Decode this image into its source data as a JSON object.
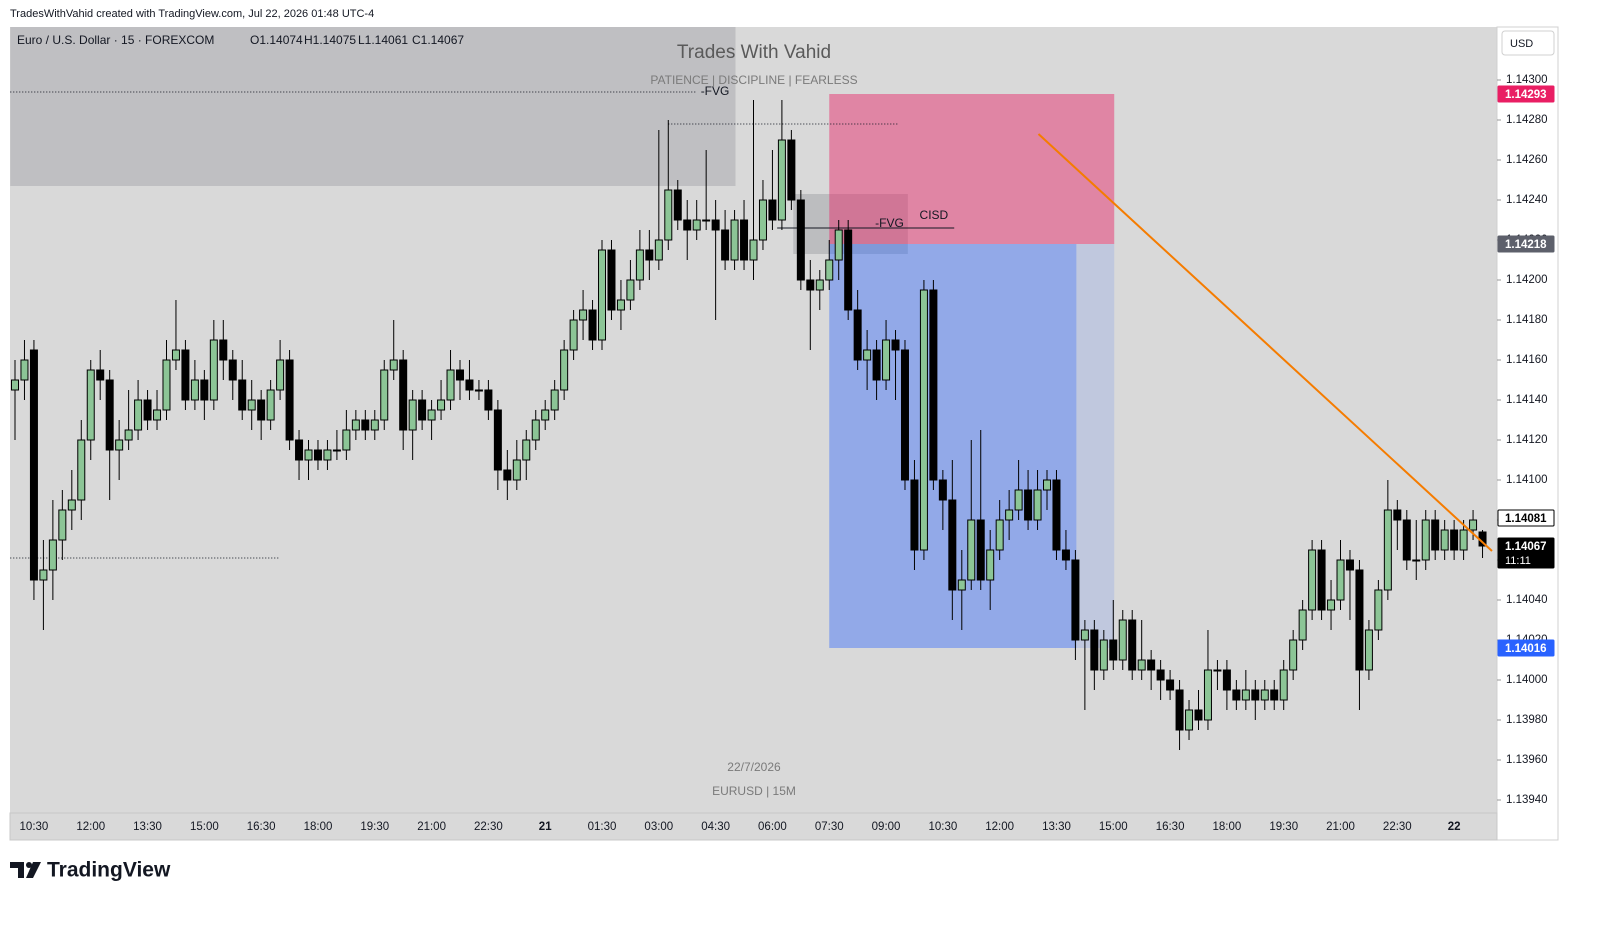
{
  "chart_data": {
    "type": "candlestick",
    "credit": "TradesWithVahid created with TradingView.com, Jul 22, 2026 01:48 UTC-4",
    "symbol": "Euro / U.S. Dollar · 15 · FOREXCOM",
    "ohlc_text": [
      "O1.14074",
      "H1.14075",
      "L1.14061",
      "C1.14067"
    ],
    "title": "Trades With Vahid",
    "subtitle": "PATIENCE  |  DISCIPLINE  |  FEARLESS",
    "date_note": "22/7/2026",
    "symbol_note": "EURUSD  |  15M",
    "currency": "USD",
    "brand": "TradingView",
    "up_color": "#8cc596",
    "down_color": "#000000",
    "ylim": [
      1.139335,
      1.143265
    ],
    "yticks": [
      {
        "value": 1.143,
        "label": "1.14300"
      },
      {
        "value": 1.1428,
        "label": "1.14280"
      },
      {
        "value": 1.1426,
        "label": "1.14260"
      },
      {
        "value": 1.1424,
        "label": "1.14240"
      },
      {
        "value": 1.1422,
        "label": "1.14220"
      },
      {
        "value": 1.142,
        "label": "1.14200"
      },
      {
        "value": 1.1418,
        "label": "1.14180"
      },
      {
        "value": 1.1416,
        "label": "1.14160"
      },
      {
        "value": 1.1414,
        "label": "1.14140"
      },
      {
        "value": 1.1412,
        "label": "1.14120"
      },
      {
        "value": 1.141,
        "label": "1.14100"
      },
      {
        "value": 1.1408,
        "label": "1.14080"
      },
      {
        "value": 1.1406,
        "label": "1.14060"
      },
      {
        "value": 1.1404,
        "label": "1.14040"
      },
      {
        "value": 1.1402,
        "label": "1.14020"
      },
      {
        "value": 1.14,
        "label": "1.14000"
      },
      {
        "value": 1.1398,
        "label": "1.13980"
      },
      {
        "value": 1.1396,
        "label": "1.13960"
      },
      {
        "value": 1.1394,
        "label": "1.13940"
      }
    ],
    "categories": [
      null,
      null,
      "10:30",
      null,
      null,
      null,
      null,
      null,
      "12:00",
      null,
      null,
      null,
      null,
      null,
      "13:30",
      null,
      null,
      null,
      null,
      null,
      "15:00",
      null,
      null,
      null,
      null,
      null,
      "16:30",
      null,
      null,
      null,
      null,
      null,
      "18:00",
      null,
      null,
      null,
      null,
      null,
      "19:30",
      null,
      null,
      null,
      null,
      null,
      "21:00",
      null,
      null,
      null,
      null,
      null,
      "22:30",
      null,
      null,
      null,
      null,
      null,
      "21",
      null,
      null,
      null,
      null,
      null,
      "01:30",
      null,
      null,
      null,
      null,
      null,
      "03:00",
      null,
      null,
      null,
      null,
      null,
      "04:30",
      null,
      null,
      null,
      null,
      null,
      "06:00",
      null,
      null,
      null,
      null,
      null,
      "07:30",
      null,
      null,
      null,
      null,
      null,
      "09:00",
      null,
      null,
      null,
      null,
      null,
      "10:30",
      null,
      null,
      null,
      null,
      null,
      "12:00",
      null,
      null,
      null,
      null,
      null,
      "13:30",
      null,
      null,
      null,
      null,
      null,
      "15:00",
      null,
      null,
      null,
      null,
      null,
      "16:30",
      null,
      null,
      null,
      null,
      null,
      "18:00",
      null,
      null,
      null,
      null,
      null,
      "19:30",
      null,
      null,
      null,
      null,
      null,
      "21:00",
      null,
      null,
      null,
      null,
      null,
      "22:30",
      null,
      null,
      null,
      null,
      null,
      "22",
      null,
      null,
      null
    ],
    "ohlc": [
      [
        1.14145,
        1.1416,
        1.1412,
        1.1415
      ],
      [
        1.1415,
        1.1417,
        1.1414,
        1.1416
      ],
      [
        1.14165,
        1.1417,
        1.1404,
        1.1405
      ],
      [
        1.1405,
        1.1407,
        1.14025,
        1.14055
      ],
      [
        1.14055,
        1.1409,
        1.1404,
        1.1407
      ],
      [
        1.1407,
        1.14095,
        1.1406,
        1.14085
      ],
      [
        1.14085,
        1.14105,
        1.14075,
        1.1409
      ],
      [
        1.1409,
        1.1413,
        1.1408,
        1.1412
      ],
      [
        1.1412,
        1.1416,
        1.1411,
        1.14155
      ],
      [
        1.14155,
        1.14165,
        1.1414,
        1.1415
      ],
      [
        1.1415,
        1.14155,
        1.1409,
        1.14115
      ],
      [
        1.14115,
        1.1413,
        1.141,
        1.1412
      ],
      [
        1.1412,
        1.14145,
        1.14115,
        1.14125
      ],
      [
        1.14125,
        1.1415,
        1.1412,
        1.1414
      ],
      [
        1.1414,
        1.14145,
        1.14125,
        1.1413
      ],
      [
        1.1413,
        1.14145,
        1.14125,
        1.14135
      ],
      [
        1.14135,
        1.1417,
        1.1413,
        1.1416
      ],
      [
        1.1416,
        1.1419,
        1.14155,
        1.14165
      ],
      [
        1.14165,
        1.1417,
        1.14135,
        1.1414
      ],
      [
        1.1414,
        1.1416,
        1.14135,
        1.1415
      ],
      [
        1.1415,
        1.14155,
        1.1413,
        1.1414
      ],
      [
        1.1414,
        1.1418,
        1.14135,
        1.1417
      ],
      [
        1.1417,
        1.1418,
        1.1415,
        1.1416
      ],
      [
        1.1416,
        1.14165,
        1.1414,
        1.1415
      ],
      [
        1.1415,
        1.1416,
        1.1413,
        1.14135
      ],
      [
        1.14135,
        1.1415,
        1.14125,
        1.1414
      ],
      [
        1.1414,
        1.14145,
        1.1412,
        1.1413
      ],
      [
        1.1413,
        1.1415,
        1.14125,
        1.14145
      ],
      [
        1.14145,
        1.1417,
        1.1414,
        1.1416
      ],
      [
        1.1416,
        1.14165,
        1.14115,
        1.1412
      ],
      [
        1.1412,
        1.14125,
        1.141,
        1.1411
      ],
      [
        1.1411,
        1.1412,
        1.141,
        1.14115
      ],
      [
        1.14115,
        1.1412,
        1.14105,
        1.1411
      ],
      [
        1.1411,
        1.1412,
        1.14105,
        1.14115
      ],
      [
        1.14115,
        1.14125,
        1.1411,
        1.14115
      ],
      [
        1.14115,
        1.14135,
        1.1411,
        1.14125
      ],
      [
        1.14125,
        1.14135,
        1.1412,
        1.1413
      ],
      [
        1.1413,
        1.14135,
        1.1412,
        1.14125
      ],
      [
        1.14125,
        1.14135,
        1.1412,
        1.1413
      ],
      [
        1.1413,
        1.1416,
        1.14125,
        1.14155
      ],
      [
        1.14155,
        1.1418,
        1.1415,
        1.1416
      ],
      [
        1.1416,
        1.14165,
        1.14115,
        1.14125
      ],
      [
        1.14125,
        1.14145,
        1.1411,
        1.1414
      ],
      [
        1.1414,
        1.14145,
        1.14125,
        1.1413
      ],
      [
        1.1413,
        1.1414,
        1.1412,
        1.14135
      ],
      [
        1.14135,
        1.1415,
        1.1413,
        1.1414
      ],
      [
        1.1414,
        1.14165,
        1.14135,
        1.14155
      ],
      [
        1.14155,
        1.1416,
        1.1414,
        1.1415
      ],
      [
        1.1415,
        1.1416,
        1.1414,
        1.14145
      ],
      [
        1.14145,
        1.1415,
        1.1414,
        1.14145
      ],
      [
        1.14145,
        1.1415,
        1.1413,
        1.14135
      ],
      [
        1.14135,
        1.1414,
        1.14095,
        1.14105
      ],
      [
        1.14105,
        1.14115,
        1.1409,
        1.141
      ],
      [
        1.141,
        1.1412,
        1.14095,
        1.1411
      ],
      [
        1.1411,
        1.14125,
        1.141,
        1.1412
      ],
      [
        1.1412,
        1.14135,
        1.14115,
        1.1413
      ],
      [
        1.1413,
        1.1414,
        1.14125,
        1.14135
      ],
      [
        1.14135,
        1.1415,
        1.1413,
        1.14145
      ],
      [
        1.14145,
        1.1417,
        1.1414,
        1.14165
      ],
      [
        1.14165,
        1.14185,
        1.1416,
        1.1418
      ],
      [
        1.1418,
        1.14195,
        1.1417,
        1.14185
      ],
      [
        1.14185,
        1.1419,
        1.14165,
        1.1417
      ],
      [
        1.1417,
        1.1422,
        1.14165,
        1.14215
      ],
      [
        1.14215,
        1.1422,
        1.1418,
        1.14185
      ],
      [
        1.14185,
        1.142,
        1.14175,
        1.1419
      ],
      [
        1.1419,
        1.1421,
        1.14185,
        1.142
      ],
      [
        1.142,
        1.14225,
        1.14195,
        1.14215
      ],
      [
        1.14215,
        1.14225,
        1.142,
        1.1421
      ],
      [
        1.1421,
        1.14275,
        1.14205,
        1.1422
      ],
      [
        1.1422,
        1.1428,
        1.14215,
        1.14245
      ],
      [
        1.14245,
        1.1425,
        1.14225,
        1.1423
      ],
      [
        1.1423,
        1.1424,
        1.1421,
        1.14225
      ],
      [
        1.14225,
        1.1424,
        1.1422,
        1.1423
      ],
      [
        1.1423,
        1.14265,
        1.14225,
        1.1423
      ],
      [
        1.1423,
        1.1424,
        1.1418,
        1.14225
      ],
      [
        1.14225,
        1.14235,
        1.14205,
        1.1421
      ],
      [
        1.1421,
        1.14235,
        1.14205,
        1.1423
      ],
      [
        1.1423,
        1.1424,
        1.14205,
        1.1421
      ],
      [
        1.1421,
        1.1429,
        1.142,
        1.1422
      ],
      [
        1.1422,
        1.1425,
        1.14215,
        1.1424
      ],
      [
        1.1424,
        1.14265,
        1.14225,
        1.1423
      ],
      [
        1.1423,
        1.1429,
        1.14225,
        1.1427
      ],
      [
        1.1427,
        1.14275,
        1.14235,
        1.1424
      ],
      [
        1.1424,
        1.14245,
        1.14195,
        1.142
      ],
      [
        1.142,
        1.1421,
        1.14165,
        1.14195
      ],
      [
        1.14195,
        1.14205,
        1.14185,
        1.142
      ],
      [
        1.142,
        1.1422,
        1.14195,
        1.1421
      ],
      [
        1.1421,
        1.1423,
        1.142,
        1.14225
      ],
      [
        1.14225,
        1.1423,
        1.1418,
        1.14185
      ],
      [
        1.14185,
        1.14195,
        1.14155,
        1.1416
      ],
      [
        1.1416,
        1.14175,
        1.14145,
        1.14165
      ],
      [
        1.14165,
        1.1417,
        1.1414,
        1.1415
      ],
      [
        1.1415,
        1.1418,
        1.14145,
        1.1417
      ],
      [
        1.1417,
        1.14175,
        1.1414,
        1.14165
      ],
      [
        1.14165,
        1.1417,
        1.14095,
        1.141
      ],
      [
        1.141,
        1.1411,
        1.14055,
        1.14065
      ],
      [
        1.14065,
        1.142,
        1.1406,
        1.14195
      ],
      [
        1.14195,
        1.142,
        1.14095,
        1.141
      ],
      [
        1.141,
        1.14105,
        1.14075,
        1.1409
      ],
      [
        1.1409,
        1.1411,
        1.1403,
        1.14045
      ],
      [
        1.14045,
        1.14065,
        1.14025,
        1.1405
      ],
      [
        1.1405,
        1.1412,
        1.14045,
        1.1408
      ],
      [
        1.1408,
        1.14125,
        1.14045,
        1.1405
      ],
      [
        1.1405,
        1.14075,
        1.14035,
        1.14065
      ],
      [
        1.14065,
        1.1409,
        1.1406,
        1.1408
      ],
      [
        1.1408,
        1.14095,
        1.1407,
        1.14085
      ],
      [
        1.14085,
        1.1411,
        1.1408,
        1.14095
      ],
      [
        1.14095,
        1.14105,
        1.14075,
        1.1408
      ],
      [
        1.1408,
        1.14105,
        1.14075,
        1.14095
      ],
      [
        1.14095,
        1.14105,
        1.14085,
        1.141
      ],
      [
        1.141,
        1.14105,
        1.1406,
        1.14065
      ],
      [
        1.14065,
        1.14075,
        1.14055,
        1.1406
      ],
      [
        1.1406,
        1.14065,
        1.1401,
        1.1402
      ],
      [
        1.1402,
        1.1403,
        1.13985,
        1.14025
      ],
      [
        1.14025,
        1.1403,
        1.13995,
        1.14005
      ],
      [
        1.14005,
        1.14025,
        1.14,
        1.1402
      ],
      [
        1.1402,
        1.1404,
        1.14005,
        1.1401
      ],
      [
        1.1401,
        1.14035,
        1.14005,
        1.1403
      ],
      [
        1.1403,
        1.14035,
        1.14,
        1.14005
      ],
      [
        1.14005,
        1.1403,
        1.14,
        1.1401
      ],
      [
        1.1401,
        1.14015,
        1.13995,
        1.14005
      ],
      [
        1.14005,
        1.1401,
        1.1399,
        1.14
      ],
      [
        1.14,
        1.14005,
        1.1399,
        1.13995
      ],
      [
        1.13995,
        1.14,
        1.13965,
        1.13975
      ],
      [
        1.13975,
        1.1399,
        1.1397,
        1.13985
      ],
      [
        1.13985,
        1.13995,
        1.13975,
        1.1398
      ],
      [
        1.1398,
        1.14025,
        1.13975,
        1.14005
      ],
      [
        1.14005,
        1.1401,
        1.13995,
        1.14005
      ],
      [
        1.14005,
        1.1401,
        1.13985,
        1.13995
      ],
      [
        1.13995,
        1.14,
        1.13985,
        1.1399
      ],
      [
        1.1399,
        1.14005,
        1.13985,
        1.13995
      ],
      [
        1.13995,
        1.14,
        1.1398,
        1.1399
      ],
      [
        1.1399,
        1.14,
        1.13985,
        1.13995
      ],
      [
        1.13995,
        1.14,
        1.13985,
        1.1399
      ],
      [
        1.1399,
        1.1401,
        1.13985,
        1.14005
      ],
      [
        1.14005,
        1.14025,
        1.14,
        1.1402
      ],
      [
        1.1402,
        1.1404,
        1.14015,
        1.14035
      ],
      [
        1.14035,
        1.1407,
        1.1403,
        1.14065
      ],
      [
        1.14065,
        1.1407,
        1.1403,
        1.14035
      ],
      [
        1.14035,
        1.1405,
        1.14025,
        1.1404
      ],
      [
        1.1404,
        1.1407,
        1.14035,
        1.1406
      ],
      [
        1.1406,
        1.14065,
        1.1403,
        1.14055
      ],
      [
        1.14055,
        1.1406,
        1.13985,
        1.14005
      ],
      [
        1.14005,
        1.1403,
        1.14,
        1.14025
      ],
      [
        1.14025,
        1.1405,
        1.1402,
        1.14045
      ],
      [
        1.14045,
        1.141,
        1.1404,
        1.14085
      ],
      [
        1.14085,
        1.1409,
        1.14065,
        1.1408
      ],
      [
        1.1408,
        1.14085,
        1.14055,
        1.1406
      ],
      [
        1.1406,
        1.1408,
        1.1405,
        1.1406
      ],
      [
        1.1406,
        1.14085,
        1.14055,
        1.1408
      ],
      [
        1.1408,
        1.14085,
        1.1406,
        1.14065
      ],
      [
        1.14065,
        1.1408,
        1.1406,
        1.14075
      ],
      [
        1.14075,
        1.1408,
        1.1406,
        1.14065
      ],
      [
        1.14065,
        1.1408,
        1.1406,
        1.14075
      ],
      [
        1.14075,
        1.14085,
        1.1407,
        1.1408
      ],
      [
        1.14074,
        1.14075,
        1.14061,
        1.14067
      ]
    ],
    "zones": [
      {
        "from": -0.5,
        "to": 76.1,
        "top": 1.1434,
        "bottom": 1.14247,
        "color": "#a9aaae",
        "opacity": 0.55
      },
      {
        "from": 82.2,
        "to": 94.3,
        "top": 1.14243,
        "bottom": 1.14213,
        "color": "#a9aaae",
        "opacity": 0.6,
        "label": "-FVG"
      }
    ],
    "levels": [
      {
        "price": 1.14294,
        "from": -0.5,
        "to": 72,
        "style": "dotted",
        "label": "-FVG"
      },
      {
        "price": 1.14278,
        "from": 69,
        "to": 93.2,
        "style": "dotted"
      },
      {
        "price": 1.14061,
        "from": -0.5,
        "to": 28,
        "style": "dotted"
      },
      {
        "price": 1.14226,
        "from": 80.5,
        "to": 99.2,
        "style": "solid",
        "label": "CISD"
      }
    ],
    "position": {
      "from": 86,
      "to": 116.1,
      "closed": 112.1,
      "entry": 1.14218,
      "stop": 1.14293,
      "target": 1.14016,
      "stop_color": "#e91e63",
      "target_color": "#2962ff"
    },
    "trendline": {
      "x": [
        108.1,
        156
      ],
      "y": [
        1.14273,
        1.140645
      ],
      "color": "#f57c00"
    },
    "price_tags": [
      {
        "value": 1.14293,
        "color": "#e91e63",
        "text_color": "#ffffff"
      },
      {
        "value": 1.14218,
        "color": "#5d606b",
        "text_color": "#ffffff"
      },
      {
        "value": 1.14081,
        "color": "#ffffff",
        "text_color": "#000000"
      },
      {
        "value": 1.14067,
        "color": "#000000",
        "text_color": "#ffffff",
        "countdown": "11:11"
      },
      {
        "value": 1.14016,
        "color": "#2962ff",
        "text_color": "#ffffff"
      }
    ]
  }
}
